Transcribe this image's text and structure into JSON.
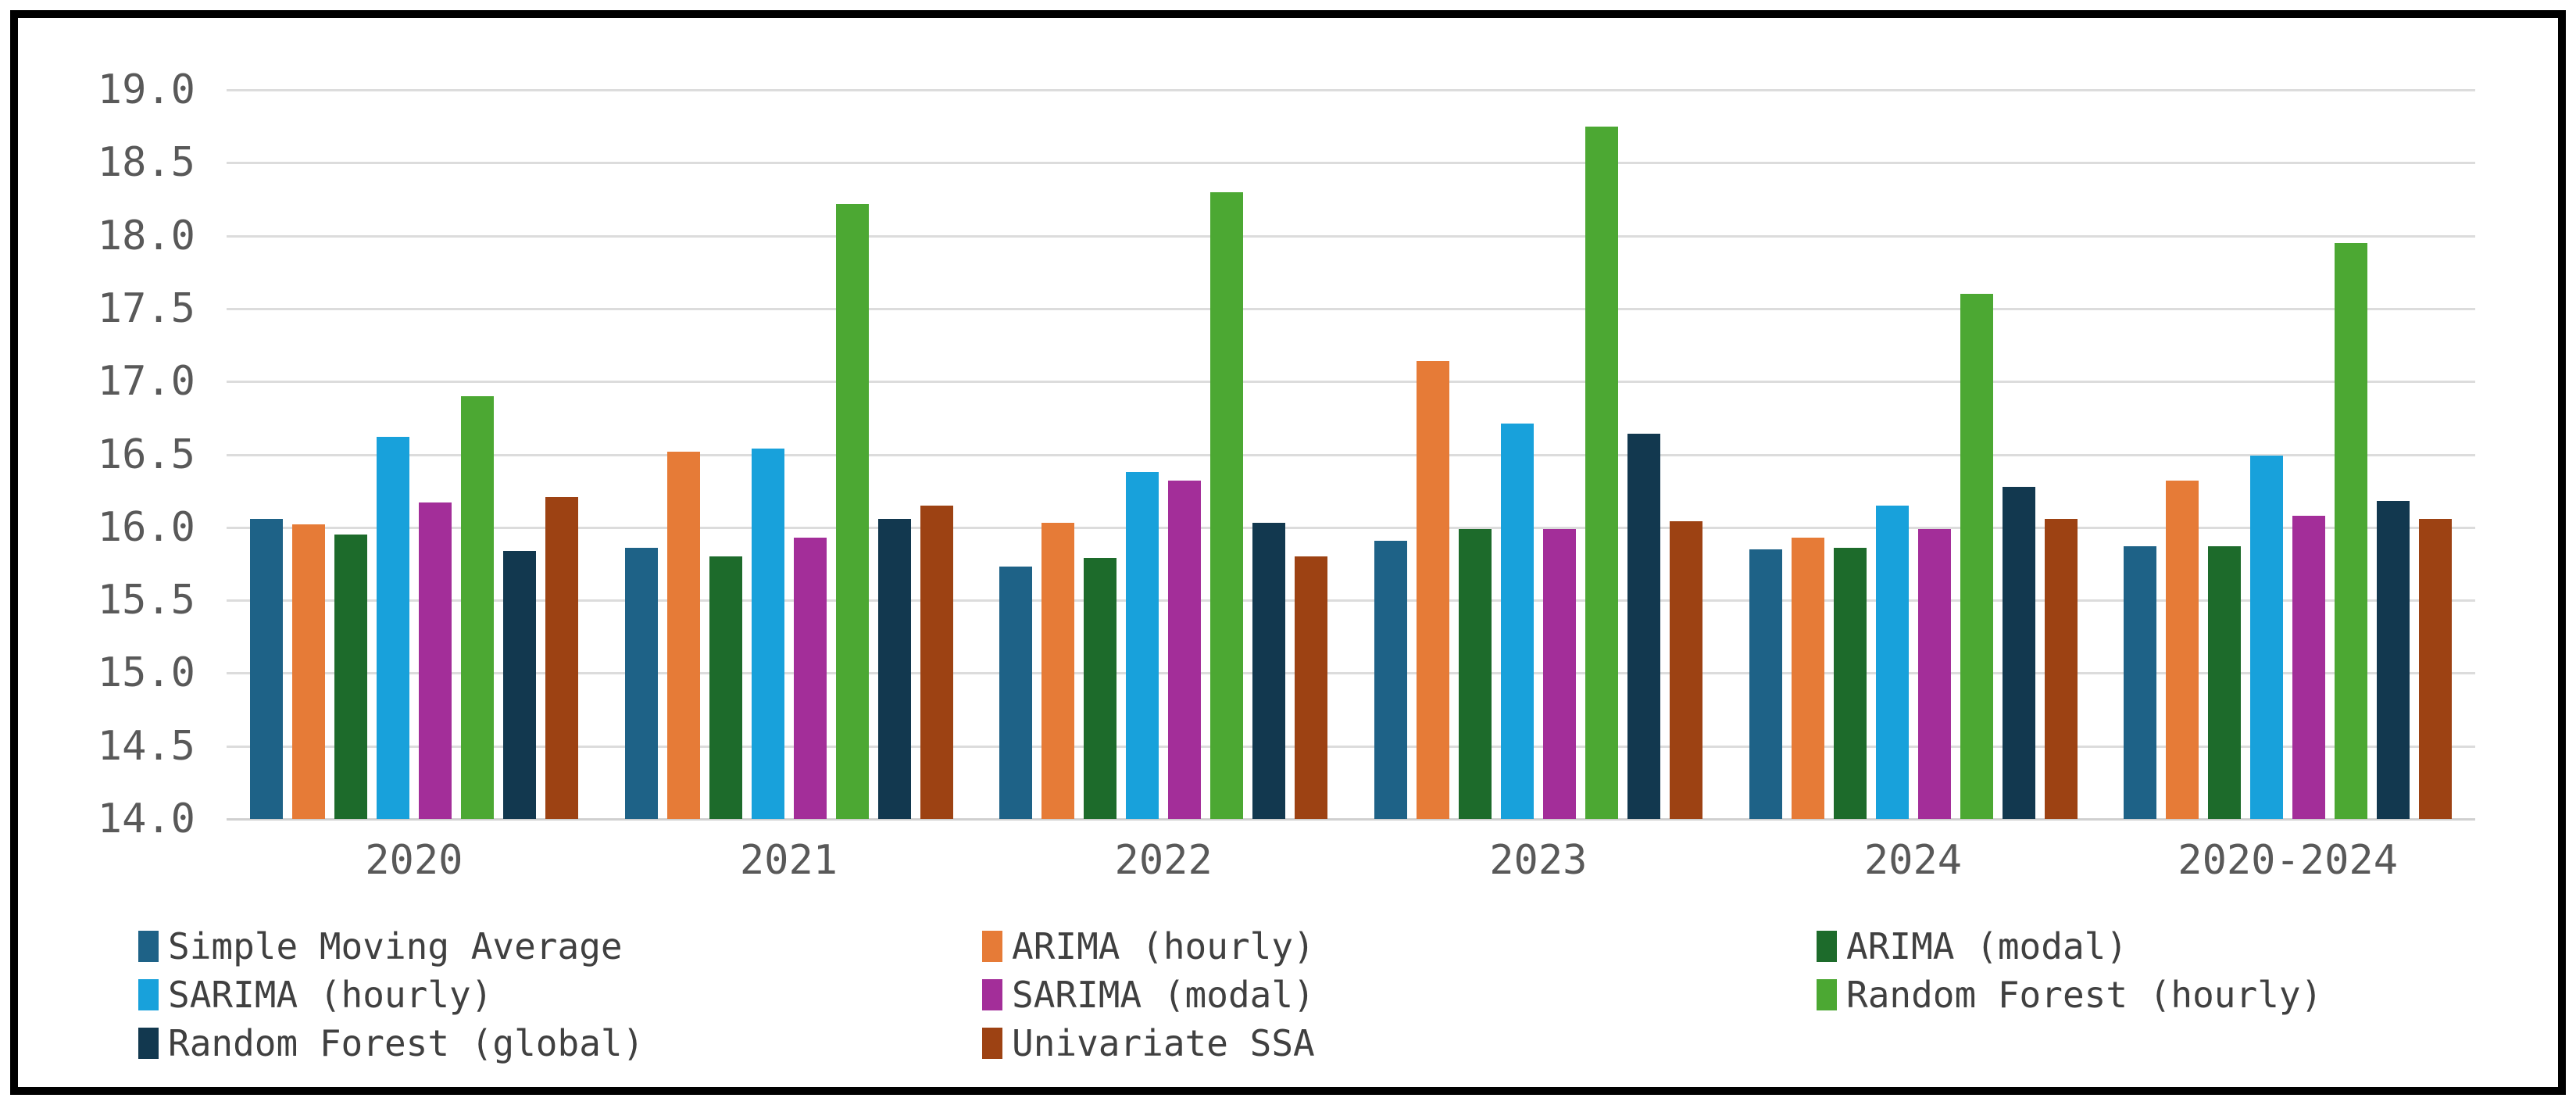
{
  "figure": {
    "background_color": "#ffffff",
    "border_color": "#000000"
  },
  "chart_data": {
    "type": "bar",
    "title": "",
    "xlabel": "",
    "ylabel": "",
    "categories": [
      "2020",
      "2021",
      "2022",
      "2023",
      "2024",
      "2020-2024"
    ],
    "series": [
      {
        "name": "Simple Moving Average",
        "color": "#1e6287",
        "values": [
          16.06,
          15.86,
          15.73,
          15.91,
          15.85,
          15.87
        ]
      },
      {
        "name": "ARIMA (hourly)",
        "color": "#e67b37",
        "values": [
          16.02,
          16.52,
          16.03,
          17.14,
          15.93,
          16.32
        ]
      },
      {
        "name": "ARIMA (modal)",
        "color": "#1d6b2b",
        "values": [
          15.95,
          15.8,
          15.79,
          15.99,
          15.86,
          15.87
        ]
      },
      {
        "name": "SARIMA (hourly)",
        "color": "#18a1db",
        "values": [
          16.62,
          16.54,
          16.38,
          16.71,
          16.15,
          16.49
        ]
      },
      {
        "name": "SARIMA (modal)",
        "color": "#a32e99",
        "values": [
          16.17,
          15.93,
          16.32,
          15.99,
          15.99,
          16.08
        ]
      },
      {
        "name": "Random Forest (hourly)",
        "color": "#4ca833",
        "values": [
          16.9,
          18.22,
          18.3,
          18.75,
          17.6,
          17.95
        ]
      },
      {
        "name": "Random Forest (global)",
        "color": "#12384f",
        "values": [
          15.84,
          16.06,
          16.03,
          16.64,
          16.28,
          16.18
        ]
      },
      {
        "name": "Univariate SSA",
        "color": "#9d4213",
        "values": [
          16.21,
          16.15,
          15.8,
          16.04,
          16.06,
          16.06
        ]
      }
    ],
    "ylim": [
      14.0,
      19.0
    ],
    "ytick_step": 0.5,
    "ytick_labels": [
      "19.0",
      "18.5",
      "18.0",
      "17.5",
      "17.0",
      "16.5",
      "16.0",
      "15.5",
      "15.0",
      "14.5",
      "14.0"
    ],
    "grid": "horizontal",
    "gridline_color": "#dcdcdc",
    "axis_label_color": "#595959",
    "legend": {
      "position": "bottom",
      "text_color": "#404040",
      "column_series_indexes": [
        [
          0,
          3,
          6
        ],
        [
          1,
          4,
          7
        ],
        [
          2,
          5
        ]
      ]
    }
  }
}
